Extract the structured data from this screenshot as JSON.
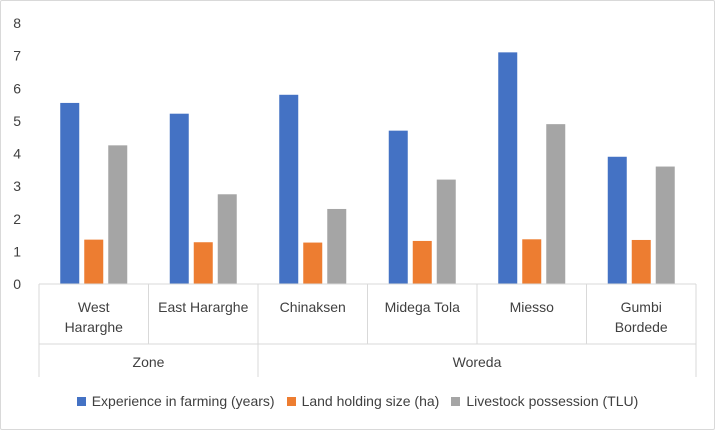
{
  "chart_data": {
    "type": "bar",
    "title": "",
    "xlabel": "",
    "ylabel": "",
    "ylim": [
      0,
      8
    ],
    "yticks": [
      "0",
      "1",
      "2",
      "3",
      "4",
      "5",
      "6",
      "7",
      "8"
    ],
    "grid": false,
    "legend_position": "bottom",
    "categories": [
      [
        "West",
        "Hararghe"
      ],
      [
        "East Hararghe"
      ],
      [
        "Chinaksen"
      ],
      [
        "Midega Tola"
      ],
      [
        "Miesso"
      ],
      [
        "Gumbi",
        "Bordede"
      ]
    ],
    "groups": [
      {
        "label": "Zone",
        "count": 2
      },
      {
        "label": "Woreda",
        "count": 4
      }
    ],
    "series": [
      {
        "name": "Experience in farming (years)",
        "color": "#4472c4",
        "values": [
          5.55,
          5.22,
          5.8,
          4.7,
          7.1,
          3.9
        ]
      },
      {
        "name": "Land holding size (ha)",
        "color": "#ed7d31",
        "values": [
          1.36,
          1.28,
          1.27,
          1.32,
          1.37,
          1.35
        ]
      },
      {
        "name": "Livestock possession (TLU)",
        "color": "#a5a5a5",
        "values": [
          4.25,
          2.75,
          2.3,
          3.2,
          4.9,
          3.6
        ]
      }
    ]
  }
}
